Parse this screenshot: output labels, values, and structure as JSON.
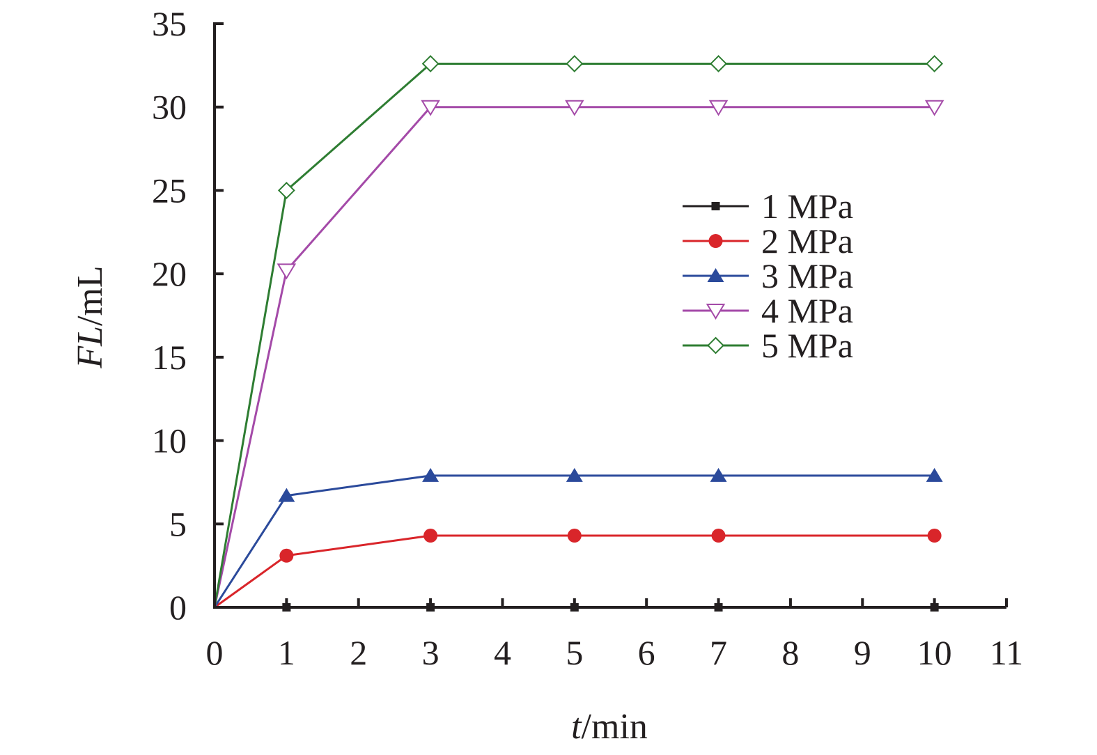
{
  "chart_data": {
    "type": "line",
    "title": "",
    "xlabel": {
      "var": "t",
      "unit": "/min"
    },
    "ylabel": {
      "var": "FL",
      "unit": "/mL"
    },
    "xlim": [
      0,
      11
    ],
    "ylim": [
      0,
      35
    ],
    "xticks": [
      "0",
      "1",
      "2",
      "3",
      "4",
      "5",
      "6",
      "7",
      "8",
      "9",
      "10",
      "11"
    ],
    "yticks": [
      "0",
      "5",
      "10",
      "15",
      "20",
      "25",
      "30",
      "35"
    ],
    "grid": false,
    "legend_position": "upper-right",
    "x": [
      0,
      1,
      3,
      5,
      7,
      10
    ],
    "series": [
      {
        "name": "1 MPa",
        "color": "#231f20",
        "marker": "square",
        "values": [
          0,
          0,
          0,
          0,
          0,
          0
        ]
      },
      {
        "name": "2 MPa",
        "color": "#d9252a",
        "marker": "circle",
        "values": [
          0,
          3.1,
          4.3,
          4.3,
          4.3,
          4.3
        ]
      },
      {
        "name": "3 MPa",
        "color": "#2b4a9b",
        "marker": "triangle-up",
        "values": [
          0,
          6.7,
          7.9,
          7.9,
          7.9,
          7.9
        ]
      },
      {
        "name": "4 MPa",
        "color": "#a44aa8",
        "marker": "triangle-down-open",
        "values": [
          0,
          20.2,
          30,
          30,
          30,
          30
        ]
      },
      {
        "name": "5 MPa",
        "color": "#2e7d32",
        "marker": "diamond-open",
        "values": [
          0,
          25,
          32.6,
          32.6,
          32.6,
          32.6
        ]
      }
    ]
  }
}
